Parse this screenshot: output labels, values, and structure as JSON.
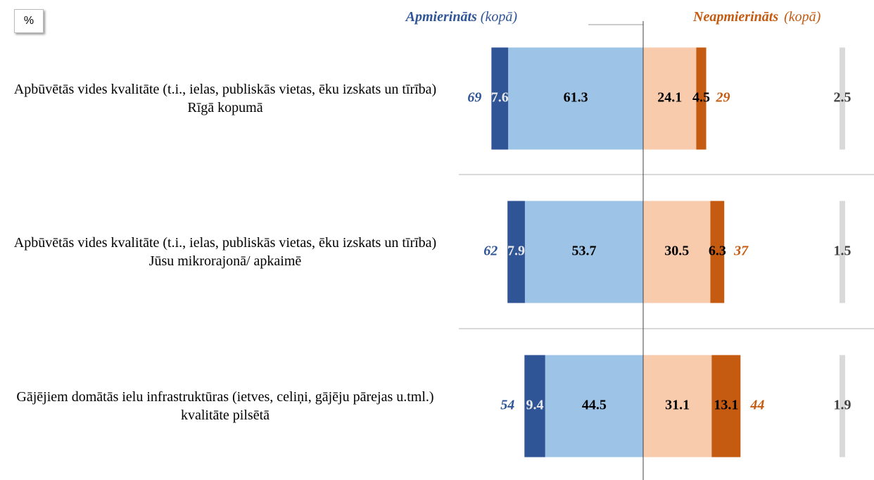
{
  "chart_data": {
    "type": "diverging-bar",
    "unit_badge": "%",
    "header_left": {
      "main": "Apmierināts",
      "note": "(kopā)"
    },
    "header_right": {
      "main": "Neapmierināts",
      "note": "(kopā)"
    },
    "categories": [
      "Apbūvētās vides kvalitāte (t.i., ielas, publiskās vietas, ēku izskats un tīrība) Rīgā kopumā",
      "Apbūvētās vides kvalitāte (t.i., ielas, publiskās vietas, ēku izskats un tīrība) Jūsu mikrorajonā/ apkaimē",
      "Gājējiem domātās ielu infrastruktūras (ietves, celiņi, gājēju pārejas u.tml.) kvalitāte pilsētā"
    ],
    "series": [
      {
        "color": "#2f5597",
        "values": [
          7.6,
          7.9,
          9.4
        ]
      },
      {
        "color": "#9dc3e6",
        "values": [
          61.3,
          53.7,
          44.5
        ]
      },
      {
        "color": "#f8cbad",
        "values": [
          24.1,
          30.5,
          31.1
        ]
      },
      {
        "color": "#c55a11",
        "values": [
          4.5,
          6.3,
          13.1
        ]
      },
      {
        "color": "#d9d9d9",
        "values": [
          2.5,
          1.5,
          1.9
        ]
      }
    ],
    "totals_left": [
      69,
      62,
      54
    ],
    "totals_right": [
      29,
      37,
      44
    ]
  }
}
